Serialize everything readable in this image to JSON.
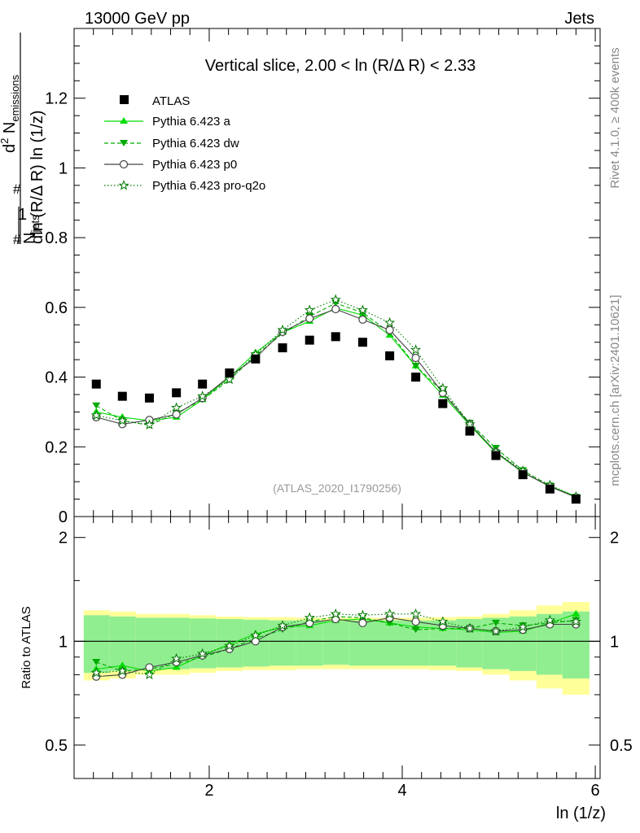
{
  "header": {
    "left": "13000 GeV pp",
    "right": "Jets"
  },
  "side": {
    "rivet": "Rivet 4.1.0, ≥ 400k events",
    "mcplots": "mcplots.cern.ch [arXiv:2401.10621]"
  },
  "plot_title": "Vertical slice, 2.00 < ln (R/Δ R) < 2.33",
  "analysis_id": "(ATLAS_2020_I1790256)",
  "chart_data": [
    {
      "type": "scatter",
      "panel": "main",
      "title": "Vertical slice, 2.00 < ln (R/Δ R) < 2.33",
      "xlabel": "ln (1/z)",
      "ylabel": "1/N_jets d²N_emissions / dln (R/Δ R) ln (1/z)",
      "xlim": [
        0.6,
        6.05
      ],
      "ylim": [
        0,
        1.4
      ],
      "y_tick_labels": [
        "0",
        "0.2",
        "0.4",
        "0.6",
        "0.8",
        "1",
        "1.2"
      ],
      "x_tick_labels": [
        "2",
        "4",
        "6"
      ],
      "legend_position": "top-left",
      "x": [
        0.83,
        1.1,
        1.38,
        1.66,
        1.93,
        2.21,
        2.48,
        2.76,
        3.04,
        3.31,
        3.59,
        3.87,
        4.14,
        4.42,
        4.7,
        4.97,
        5.25,
        5.53,
        5.8
      ],
      "series": [
        {
          "name": "ATLAS",
          "style": "data",
          "color": "#000000",
          "values": [
            0.38,
            0.345,
            0.34,
            0.355,
            0.38,
            0.412,
            0.452,
            0.484,
            0.506,
            0.516,
            0.5,
            0.461,
            0.4,
            0.324,
            0.245,
            0.175,
            0.12,
            0.079,
            0.05
          ]
        },
        {
          "name": "Pythia 6.423 a",
          "style": "a",
          "color": "#00dd00",
          "values": [
            0.3,
            0.285,
            0.275,
            0.285,
            0.335,
            0.4,
            0.47,
            0.528,
            0.56,
            0.598,
            0.578,
            0.52,
            0.432,
            0.348,
            0.262,
            0.183,
            0.126,
            0.087,
            0.058
          ]
        },
        {
          "name": "Pythia 6.423 dw",
          "style": "dw",
          "color": "#00aa00",
          "values": [
            0.318,
            0.275,
            0.262,
            0.296,
            0.335,
            0.392,
            0.462,
            0.525,
            0.574,
            0.612,
            0.585,
            0.528,
            0.432,
            0.358,
            0.268,
            0.196,
            0.132,
            0.088,
            0.056
          ]
        },
        {
          "name": "Pythia 6.423 p0",
          "style": "p0",
          "color": "#444444",
          "values": [
            0.285,
            0.265,
            0.277,
            0.293,
            0.34,
            0.402,
            0.455,
            0.53,
            0.568,
            0.595,
            0.565,
            0.535,
            0.455,
            0.355,
            0.265,
            0.185,
            0.127,
            0.086,
            0.055
          ]
        },
        {
          "name": "Pythia 6.423 pro-q2o",
          "style": "q2o",
          "color": "#007700",
          "values": [
            0.29,
            0.275,
            0.263,
            0.312,
            0.345,
            0.393,
            0.465,
            0.535,
            0.592,
            0.622,
            0.592,
            0.556,
            0.478,
            0.368,
            0.265,
            0.186,
            0.131,
            0.09,
            0.057
          ]
        }
      ]
    },
    {
      "type": "scatter",
      "panel": "ratio",
      "ylabel": "Ratio to ATLAS",
      "xlabel": "ln (1/z)",
      "xlim": [
        0.6,
        6.05
      ],
      "ylim": [
        0.4,
        2.3
      ],
      "y_tick_labels": [
        "0.5",
        "1",
        "2"
      ],
      "x_tick_labels": [
        "2",
        "4",
        "6"
      ],
      "bin_edges": [
        0.7,
        0.97,
        1.24,
        1.52,
        1.8,
        2.07,
        2.35,
        2.62,
        2.9,
        3.18,
        3.45,
        3.73,
        4.0,
        4.28,
        4.56,
        4.83,
        5.11,
        5.39,
        5.66,
        5.94
      ],
      "band_inner": [
        0.19,
        0.18,
        0.17,
        0.17,
        0.165,
        0.16,
        0.155,
        0.15,
        0.15,
        0.145,
        0.15,
        0.15,
        0.15,
        0.15,
        0.16,
        0.17,
        0.18,
        0.2,
        0.22
      ],
      "band_outer": [
        0.23,
        0.22,
        0.2,
        0.2,
        0.19,
        0.18,
        0.175,
        0.175,
        0.17,
        0.17,
        0.17,
        0.17,
        0.17,
        0.175,
        0.18,
        0.2,
        0.23,
        0.27,
        0.3
      ],
      "band_colors": {
        "inner": "#90ee90",
        "outer": "#ffff99"
      },
      "reference_line": 1,
      "x": [
        0.83,
        1.1,
        1.38,
        1.66,
        1.93,
        2.21,
        2.48,
        2.76,
        3.04,
        3.31,
        3.59,
        3.87,
        4.14,
        4.42,
        4.7,
        4.97,
        5.25,
        5.53,
        5.8
      ],
      "series": [
        {
          "name": "Pythia 6.423 a",
          "style": "a",
          "color": "#00dd00",
          "values": [
            0.83,
            0.85,
            0.82,
            0.84,
            0.91,
            0.98,
            1.05,
            1.1,
            1.11,
            1.15,
            1.16,
            1.13,
            1.1,
            1.09,
            1.08,
            1.06,
            1.07,
            1.13,
            1.2
          ]
        },
        {
          "name": "Pythia 6.423 dw",
          "style": "dw",
          "color": "#00aa00",
          "values": [
            0.87,
            0.82,
            0.83,
            0.86,
            0.9,
            0.95,
            1.02,
            1.08,
            1.14,
            1.18,
            1.17,
            1.13,
            1.08,
            1.09,
            1.09,
            1.13,
            1.11,
            1.13,
            1.15
          ]
        },
        {
          "name": "Pythia 6.423 p0",
          "style": "p0",
          "color": "#444444",
          "values": [
            0.79,
            0.8,
            0.84,
            0.87,
            0.91,
            0.95,
            1.0,
            1.1,
            1.13,
            1.16,
            1.13,
            1.17,
            1.14,
            1.11,
            1.09,
            1.07,
            1.08,
            1.12,
            1.12
          ]
        },
        {
          "name": "Pythia 6.423 pro-q2o",
          "style": "q2o",
          "color": "#007700",
          "values": [
            0.81,
            0.82,
            0.8,
            0.89,
            0.92,
            0.97,
            1.04,
            1.11,
            1.17,
            1.2,
            1.19,
            1.2,
            1.2,
            1.14,
            1.09,
            1.07,
            1.1,
            1.15,
            1.14
          ]
        }
      ]
    }
  ]
}
